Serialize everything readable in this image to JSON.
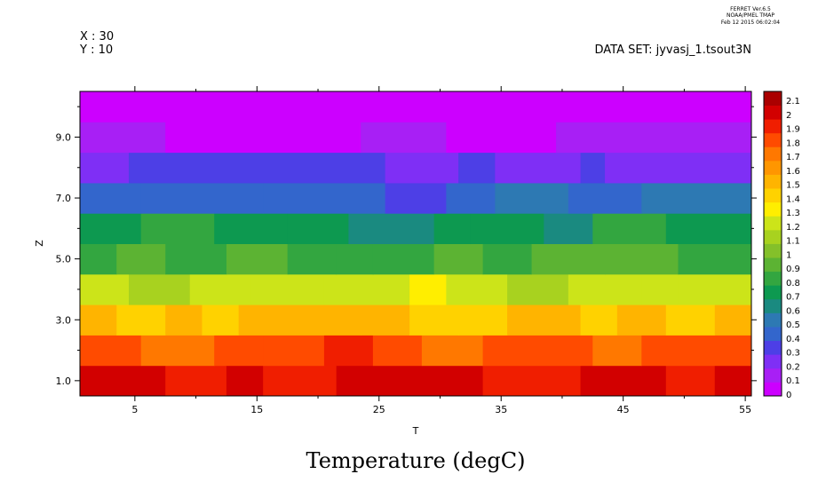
{
  "header": {
    "program_lines": [
      "FERRET Ver.6.5",
      "NOAA/PMEL TMAP",
      "Feb 12 2015 06:02:04"
    ],
    "x_info": "X : 30",
    "y_info": "Y : 10",
    "dataset": "DATA SET: jyvasj_1.tsout3N"
  },
  "chart_data": {
    "type": "heatmap",
    "title": "Temperature (degC)",
    "xlabel": "T",
    "ylabel": "Z",
    "xlim": [
      0.5,
      55.5
    ],
    "ylim": [
      0.5,
      10.5
    ],
    "x_ticks": [
      5,
      15,
      25,
      35,
      45,
      55
    ],
    "x_tick_labels": [
      "5",
      "15",
      "25",
      "35",
      "45",
      "55"
    ],
    "y_ticks": [
      1,
      3,
      5,
      7,
      9
    ],
    "y_tick_labels": [
      "1.0",
      "3.0",
      "5.0",
      "7.0",
      "9.0"
    ],
    "grid": false,
    "z_range": [
      0,
      2.1
    ],
    "colorbar": {
      "levels": [
        0,
        0.1,
        0.2,
        0.3,
        0.4,
        0.5,
        0.6,
        0.7,
        0.8,
        0.9,
        1,
        1.1,
        1.2,
        1.3,
        1.4,
        1.5,
        1.6,
        1.7,
        1.8,
        1.9,
        2,
        2.1
      ],
      "labels": [
        "0",
        "0.1",
        "0.2",
        "0.3",
        "0.4",
        "0.5",
        "0.6",
        "0.7",
        "0.8",
        "0.9",
        "1",
        "1.1",
        "1.2",
        "1.3",
        "1.4",
        "1.5",
        "1.6",
        "1.7",
        "1.8",
        "1.9",
        "2",
        "2.1"
      ],
      "colors": [
        "#cc00ff",
        "#a81ff5",
        "#7f2ff5",
        "#4d3fe6",
        "#3366cc",
        "#2d79b3",
        "#1a8a80",
        "#0d9950",
        "#33a640",
        "#5cb333",
        "#84c02a",
        "#a8d21f",
        "#cce419",
        "#ffee00",
        "#ffd200",
        "#ffb400",
        "#ff9600",
        "#ff7800",
        "#ff4b00",
        "#f01e00",
        "#d20000",
        "#aa0000"
      ]
    },
    "rows": [
      {
        "z": 1,
        "segments": [
          [
            1,
            7,
            2.05
          ],
          [
            8,
            12,
            1.95
          ],
          [
            13,
            15,
            2.0
          ],
          [
            16,
            21,
            1.95
          ],
          [
            22,
            24,
            2.05
          ],
          [
            25,
            27,
            2.05
          ],
          [
            28,
            31,
            2.0
          ],
          [
            32,
            33,
            2.05
          ],
          [
            34,
            41,
            1.95
          ],
          [
            42,
            45,
            2.05
          ],
          [
            46,
            48,
            2.05
          ],
          [
            49,
            52,
            1.95
          ],
          [
            53,
            55,
            2.0
          ]
        ]
      },
      {
        "z": 2,
        "segments": [
          [
            1,
            5,
            1.85
          ],
          [
            6,
            11,
            1.75
          ],
          [
            12,
            15,
            1.8
          ],
          [
            16,
            20,
            1.85
          ],
          [
            21,
            24,
            1.9
          ],
          [
            25,
            28,
            1.85
          ],
          [
            29,
            33,
            1.75
          ],
          [
            34,
            38,
            1.8
          ],
          [
            39,
            42,
            1.85
          ],
          [
            43,
            46,
            1.75
          ],
          [
            47,
            55,
            1.85
          ]
        ]
      },
      {
        "z": 3,
        "segments": [
          [
            1,
            3,
            1.55
          ],
          [
            4,
            7,
            1.45
          ],
          [
            8,
            10,
            1.5
          ],
          [
            11,
            13,
            1.45
          ],
          [
            14,
            23,
            1.5
          ],
          [
            24,
            27,
            1.55
          ],
          [
            28,
            31,
            1.45
          ],
          [
            32,
            35,
            1.4
          ],
          [
            36,
            41,
            1.5
          ],
          [
            42,
            44,
            1.45
          ],
          [
            45,
            48,
            1.5
          ],
          [
            49,
            52,
            1.45
          ],
          [
            53,
            55,
            1.5
          ]
        ]
      },
      {
        "z": 4,
        "segments": [
          [
            1,
            4,
            1.25
          ],
          [
            5,
            9,
            1.15
          ],
          [
            10,
            14,
            1.25
          ],
          [
            15,
            20,
            1.2
          ],
          [
            21,
            27,
            1.25
          ],
          [
            28,
            30,
            1.35
          ],
          [
            31,
            35,
            1.2
          ],
          [
            36,
            40,
            1.15
          ],
          [
            41,
            46,
            1.2
          ],
          [
            47,
            49,
            1.25
          ],
          [
            50,
            55,
            1.2
          ]
        ]
      },
      {
        "z": 5,
        "segments": [
          [
            1,
            3,
            0.85
          ],
          [
            4,
            7,
            0.95
          ],
          [
            8,
            12,
            0.85
          ],
          [
            13,
            17,
            0.95
          ],
          [
            18,
            21,
            0.85
          ],
          [
            22,
            24,
            0.8
          ],
          [
            25,
            29,
            0.85
          ],
          [
            30,
            33,
            0.95
          ],
          [
            34,
            37,
            0.85
          ],
          [
            38,
            43,
            0.9
          ],
          [
            44,
            49,
            0.95
          ],
          [
            50,
            55,
            0.85
          ]
        ]
      },
      {
        "z": 6,
        "segments": [
          [
            1,
            5,
            0.75
          ],
          [
            6,
            11,
            0.8
          ],
          [
            12,
            17,
            0.75
          ],
          [
            18,
            22,
            0.7
          ],
          [
            23,
            29,
            0.6
          ],
          [
            30,
            32,
            0.7
          ],
          [
            33,
            38,
            0.75
          ],
          [
            39,
            42,
            0.65
          ],
          [
            43,
            48,
            0.8
          ],
          [
            49,
            55,
            0.75
          ]
        ]
      },
      {
        "z": 7,
        "segments": [
          [
            1,
            5,
            0.4
          ],
          [
            6,
            15,
            0.45
          ],
          [
            16,
            25,
            0.4
          ],
          [
            26,
            30,
            0.35
          ],
          [
            31,
            34,
            0.45
          ],
          [
            35,
            40,
            0.5
          ],
          [
            41,
            46,
            0.45
          ],
          [
            47,
            55,
            0.5
          ]
        ]
      },
      {
        "z": 8,
        "segments": [
          [
            1,
            4,
            0.25
          ],
          [
            5,
            25,
            0.3
          ],
          [
            26,
            31,
            0.25
          ],
          [
            32,
            34,
            0.3
          ],
          [
            35,
            41,
            0.25
          ],
          [
            42,
            43,
            0.3
          ],
          [
            44,
            55,
            0.25
          ]
        ]
      },
      {
        "z": 9,
        "segments": [
          [
            1,
            7,
            0.1
          ],
          [
            8,
            23,
            0.05
          ],
          [
            24,
            30,
            0.15
          ],
          [
            31,
            39,
            0.05
          ],
          [
            40,
            55,
            0.1
          ]
        ]
      },
      {
        "z": 10,
        "segments": [
          [
            1,
            55,
            0.02
          ]
        ]
      }
    ]
  }
}
